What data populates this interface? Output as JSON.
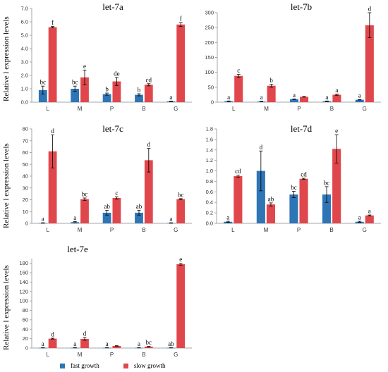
{
  "colors": {
    "fast": "#2e75b6",
    "slow": "#e0474c",
    "axis": "#a6a6a6"
  },
  "y_axis_label": "Relative l expression levels",
  "legend": [
    {
      "label": "fast growth",
      "color": "#2e75b6"
    },
    {
      "label": "slow growth",
      "color": "#e0474c"
    }
  ],
  "chart_data": [
    {
      "type": "bar",
      "title": "let-7a",
      "categories": [
        "L",
        "M",
        "P",
        "B",
        "G"
      ],
      "ylim": [
        0,
        7
      ],
      "yticks": [
        "0.0",
        "1.0",
        "2.0",
        "3.0",
        "4.0",
        "5.0",
        "6.0",
        "7.0"
      ],
      "series": [
        {
          "name": "fast growth",
          "values": [
            0.9,
            1.0,
            0.6,
            0.55,
            0.06
          ],
          "errors": [
            0.3,
            0.2,
            0.08,
            0.08,
            0.02
          ],
          "labels": [
            "bc",
            "bc",
            "b",
            "b",
            "a"
          ]
        },
        {
          "name": "slow growth",
          "values": [
            5.6,
            1.85,
            1.55,
            1.3,
            5.8
          ],
          "errors": [
            0.05,
            0.55,
            0.3,
            0.08,
            0.15
          ],
          "labels": [
            "f",
            "e",
            "de",
            "cd",
            "f"
          ]
        }
      ]
    },
    {
      "type": "bar",
      "title": "let-7b",
      "categories": [
        "L",
        "M",
        "P",
        "B",
        "G"
      ],
      "ylim": [
        0,
        300
      ],
      "yticks": [
        "0",
        "50",
        "100",
        "150",
        "200",
        "250",
        "300"
      ],
      "series": [
        {
          "name": "fast growth",
          "values": [
            3,
            2,
            10,
            3,
            8
          ],
          "errors": [
            1,
            1,
            1,
            1,
            1
          ],
          "labels": [
            "a",
            "a",
            "a",
            "a",
            "a"
          ]
        },
        {
          "name": "slow growth",
          "values": [
            88,
            55,
            18,
            25,
            258
          ],
          "errors": [
            5,
            5,
            1,
            2,
            42
          ],
          "labels": [
            "c",
            "b",
            "",
            "a",
            "d"
          ]
        }
      ]
    },
    {
      "type": "bar",
      "title": "let-7c",
      "categories": [
        "L",
        "M",
        "P",
        "B",
        "G"
      ],
      "ylim": [
        0,
        80
      ],
      "yticks": [
        "0",
        "10",
        "20",
        "30",
        "40",
        "50",
        "60",
        "70",
        "80"
      ],
      "series": [
        {
          "name": "fast growth",
          "values": [
            0.3,
            1,
            9,
            9,
            0.3
          ],
          "errors": [
            0.2,
            0.5,
            2,
            2,
            0.2
          ],
          "labels": [
            "a",
            "a",
            "ab",
            "ab",
            "a"
          ]
        },
        {
          "name": "slow growth",
          "values": [
            61,
            20.5,
            21.5,
            53.5,
            20.5
          ],
          "errors": [
            14,
            1,
            1,
            10,
            0.5
          ],
          "labels": [
            "d",
            "bc",
            "c",
            "d",
            "bc"
          ]
        }
      ]
    },
    {
      "type": "bar",
      "title": "let-7d",
      "categories": [
        "L",
        "M",
        "P",
        "B",
        "G"
      ],
      "ylim": [
        0,
        1.8
      ],
      "yticks": [
        "0.0",
        "0.2",
        "0.4",
        "0.6",
        "0.8",
        "1.0",
        "1.2",
        "1.4",
        "1.6",
        "1.8"
      ],
      "series": [
        {
          "name": "fast growth",
          "values": [
            0.03,
            1.0,
            0.55,
            0.55,
            0.03
          ],
          "errors": [
            0.01,
            0.38,
            0.06,
            0.15,
            0.01
          ],
          "labels": [
            "a",
            "d",
            "bc",
            "bc",
            "a"
          ]
        },
        {
          "name": "slow growth",
          "values": [
            0.9,
            0.36,
            0.85,
            1.42,
            0.15
          ],
          "errors": [
            0.02,
            0.03,
            0.01,
            0.27,
            0.01
          ],
          "labels": [
            "cd",
            "ab",
            "cd",
            "e",
            "a"
          ]
        }
      ]
    },
    {
      "type": "bar",
      "title": "let-7e",
      "categories": [
        "L",
        "M",
        "P",
        "B",
        "G"
      ],
      "ylim": [
        0,
        190
      ],
      "yticks": [
        "0",
        "20",
        "40",
        "60",
        "80",
        "100",
        "120",
        "140",
        "160",
        "180"
      ],
      "series": [
        {
          "name": "fast growth",
          "values": [
            0.5,
            0.5,
            0.5,
            0.5,
            0.5
          ],
          "errors": [
            0.2,
            0.2,
            0.2,
            0.2,
            0.2
          ],
          "labels": [
            "a",
            "a",
            "a",
            "a",
            "ab"
          ]
        },
        {
          "name": "slow growth",
          "values": [
            20,
            19.5,
            4.5,
            3,
            178
          ],
          "errors": [
            1,
            3,
            0.5,
            0.5,
            2
          ],
          "labels": [
            "d",
            "d",
            "",
            "bc",
            "e"
          ]
        }
      ]
    }
  ]
}
